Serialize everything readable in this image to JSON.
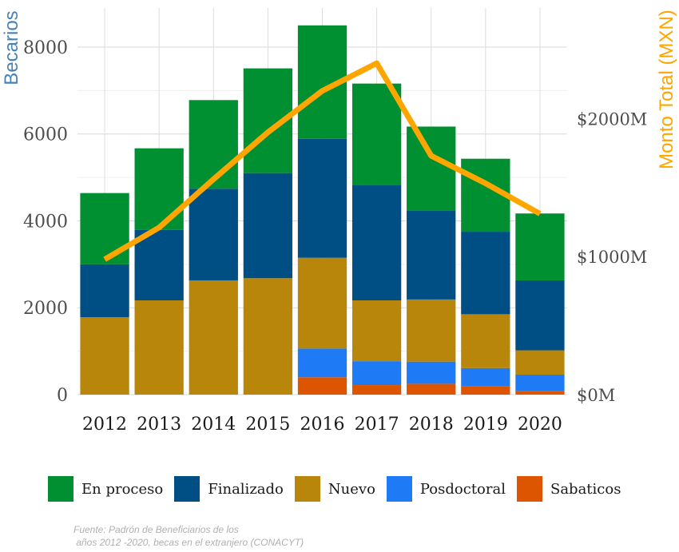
{
  "chart_data": {
    "type": "bar",
    "stacked": true,
    "categories": [
      "2012",
      "2013",
      "2014",
      "2015",
      "2016",
      "2017",
      "2018",
      "2019",
      "2020"
    ],
    "series": [
      {
        "name": "Sabaticos",
        "color": "#dd5500",
        "values": [
          0,
          0,
          0,
          0,
          400,
          220,
          250,
          200,
          80
        ]
      },
      {
        "name": "Posdoctoral",
        "color": "#1e7bf5",
        "values": [
          0,
          0,
          0,
          0,
          660,
          550,
          510,
          410,
          380
        ]
      },
      {
        "name": "Nuevo",
        "color": "#b8860b",
        "values": [
          1780,
          2170,
          2630,
          2680,
          2090,
          1400,
          1430,
          1240,
          560
        ]
      },
      {
        "name": "Finalizado",
        "color": "#004f84",
        "values": [
          1220,
          1620,
          2110,
          2420,
          2740,
          2660,
          2040,
          1900,
          1610
        ]
      },
      {
        "name": "En proceso",
        "color": "#008f31",
        "values": [
          1640,
          1880,
          2040,
          2410,
          2610,
          2330,
          1940,
          1680,
          1540
        ]
      }
    ],
    "line": {
      "name": "Monto Total (MXN)",
      "color": "#ffa500",
      "values_millions": [
        980,
        1210,
        1560,
        1900,
        2200,
        2400,
        1730,
        1530,
        1310
      ]
    },
    "ylabel": "Becarios",
    "ylabel_color": "#4682b4",
    "ylim": [
      0,
      8900
    ],
    "yticks": [
      "0",
      "2000",
      "4000",
      "6000",
      "8000"
    ],
    "ylabel_right": "Monto Total (MXN)",
    "ylabel_right_color": "#ffa500",
    "ylim_right_millions": [
      0,
      2800
    ],
    "yticks_right": [
      "$0M",
      "$1000M",
      "$2000M"
    ],
    "grid": true,
    "legend_position": "bottom",
    "legend": [
      "En proceso",
      "Finalizado",
      "Nuevo",
      "Posdoctoral",
      "Sabaticos"
    ],
    "caption": "Fuente: Padrón de Beneficiarios de los\n años 2012 -2020, becas en el extranjero (CONACYT)"
  }
}
